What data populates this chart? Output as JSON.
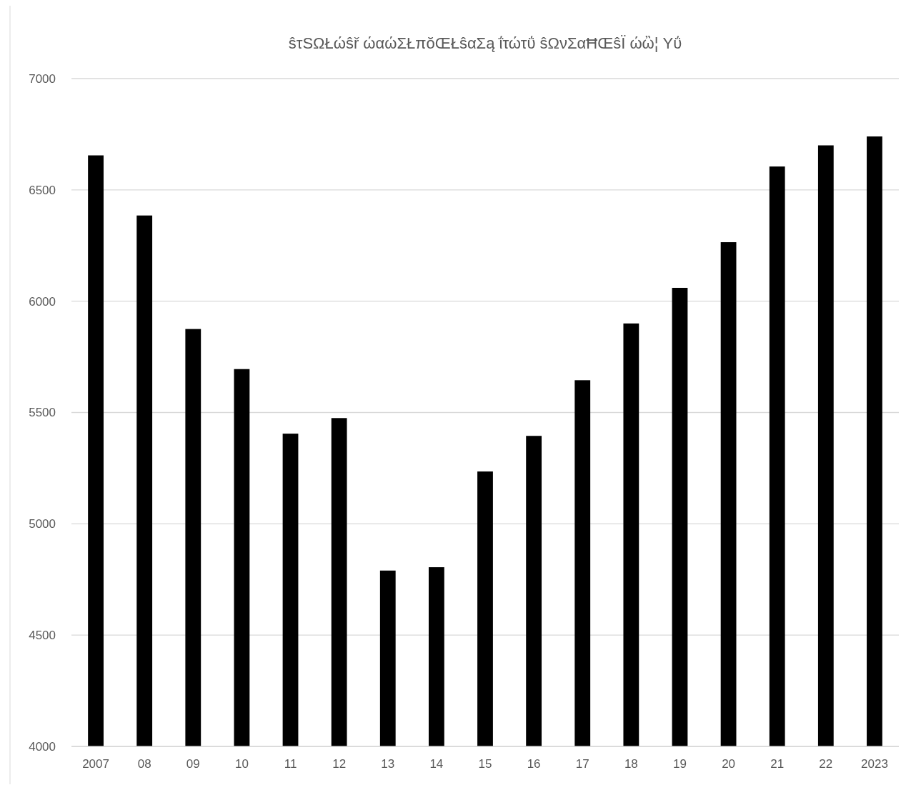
{
  "chart_data": {
    "type": "bar",
    "title": "ŝτSΩŁώŝř ώαώΣŁπŏŒŁŝαΣą ΐτώτΰ ŝΩνΣαĦŒŝΪ ώὢ¦ Yΰ",
    "categories": [
      "2007",
      "08",
      "09",
      "10",
      "11",
      "12",
      "13",
      "14",
      "15",
      "16",
      "17",
      "18",
      "19",
      "20",
      "21",
      "22",
      "2023"
    ],
    "values": [
      6655,
      6385,
      5875,
      5695,
      5405,
      5475,
      4790,
      4805,
      5235,
      5395,
      5645,
      5900,
      6060,
      6265,
      6605,
      6700,
      6740
    ],
    "color": "#000000",
    "ylim": [
      4000,
      7000
    ],
    "yticks": [
      4000,
      4500,
      5000,
      5500,
      6000,
      6500,
      7000
    ],
    "grid": "y"
  }
}
